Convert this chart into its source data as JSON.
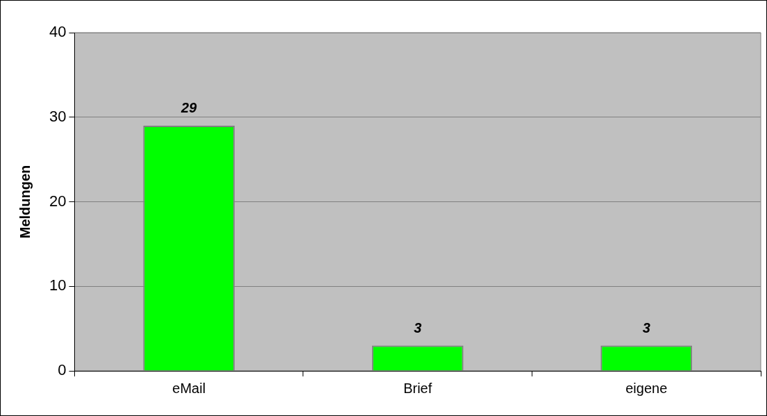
{
  "chart_data": {
    "type": "bar",
    "ylabel": "Meldungen",
    "categories": [
      "eMail",
      "Brief",
      "eigene"
    ],
    "values": [
      29,
      3,
      3
    ],
    "color": "#00ff00",
    "ylim": [
      0,
      40
    ],
    "yticks": [
      0,
      10,
      20,
      30,
      40
    ],
    "grid": "y",
    "data_labels": true
  }
}
